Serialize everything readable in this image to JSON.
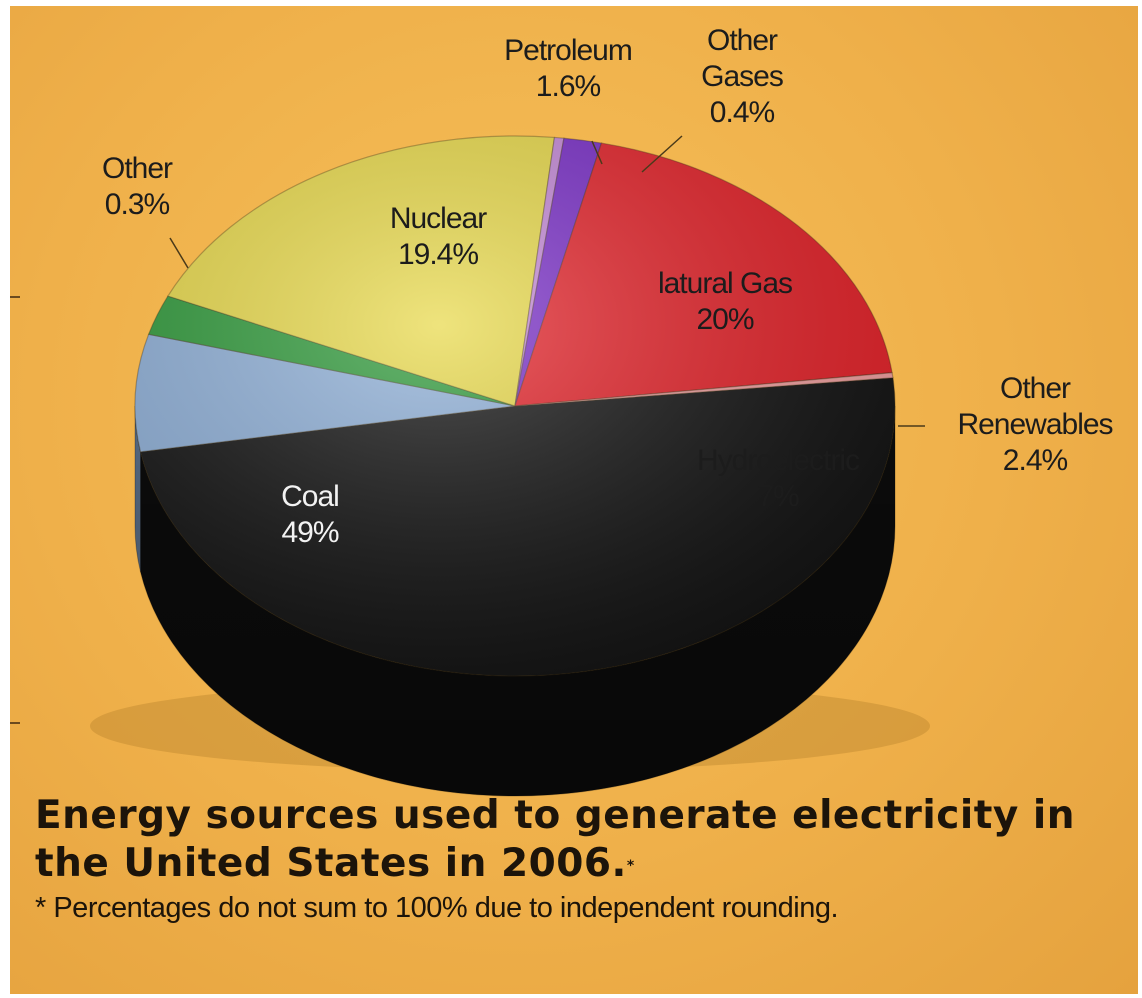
{
  "chart_data": {
    "type": "pie",
    "title": "Energy sources used to generate electricity in the United States in 2006.",
    "title_marker": "*",
    "footnote": "* Percentages do not sum to 100% due to independent rounding.",
    "slices": [
      {
        "label": "Coal",
        "value": 49,
        "value_label": "49%",
        "color": "#141414"
      },
      {
        "label": "Hydroelectric",
        "value": 7,
        "value_label": "7%",
        "color": "#8fb0d8"
      },
      {
        "label_lines": [
          "Other",
          "Renewables"
        ],
        "value": 2.4,
        "value_label": "2.4%",
        "color": "#2f9a3a"
      },
      {
        "label": "Natural Gas",
        "display_label": "latural Gas",
        "value": 20,
        "value_label": "20%",
        "color": "#e8d94a"
      },
      {
        "label_lines": [
          "Other",
          "Gases"
        ],
        "value": 0.4,
        "value_label": "0.4%",
        "color": "#c58ad8"
      },
      {
        "label": "Petroleum",
        "value": 1.6,
        "value_label": "1.6%",
        "color": "#7a2fc8"
      },
      {
        "label": "Nuclear",
        "value": 19.4,
        "value_label": "19.4%",
        "color": "#e4232a"
      },
      {
        "label": "Other",
        "value": 0.3,
        "value_label": "0.3%",
        "color": "#f0a0a0"
      }
    ],
    "legend": "none"
  }
}
